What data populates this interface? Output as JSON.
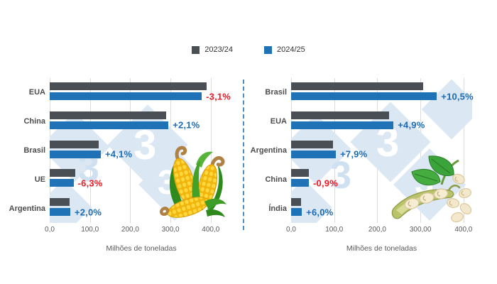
{
  "branding": {
    "watermark_glyph": "3"
  },
  "legend": {
    "items": [
      {
        "label": "2023/24",
        "color": "#4a4f55"
      },
      {
        "label": "2024/25",
        "color": "#1f72b5"
      }
    ]
  },
  "divider": {
    "style": "dashed-vertical",
    "color": "#4b8ec7"
  },
  "illustrations": {
    "left": "corn-cobs",
    "right": "soybean-pod-with-beans"
  },
  "colors": {
    "bar_2023_24": "#4a4f55",
    "bar_2024_25": "#1f72b5",
    "positive_change_text": "#1b6bb5",
    "negative_change_text": "#ee1b24",
    "gridline": "#dcdcdc",
    "watermark_tile": "#dbe7f3"
  },
  "chart_data": [
    {
      "id": "corn-production",
      "type": "bar",
      "orientation": "horizontal",
      "commodity_icon": "corn-icon",
      "categories": [
        "EUA",
        "China",
        "Brasil",
        "UE",
        "Argentina"
      ],
      "series": [
        {
          "name": "2023/24",
          "color": "#4a4f55",
          "values": [
            389.7,
            288.8,
            122.0,
            63.3,
            50.0
          ]
        },
        {
          "name": "2024/25",
          "color": "#1f72b5",
          "values": [
            377.6,
            294.9,
            127.0,
            59.3,
            51.0
          ]
        }
      ],
      "change_labels": [
        {
          "text": "-3,1%",
          "color": "#ee1b24"
        },
        {
          "text": "+2,1%",
          "color": "#1b6bb5"
        },
        {
          "text": "+4,1%",
          "color": "#1b6bb5"
        },
        {
          "text": "-6,3%",
          "color": "#ee1b24"
        },
        {
          "text": "+2,0%",
          "color": "#1b6bb5"
        }
      ],
      "x_ticks": [
        {
          "label": "0,0",
          "value": 0
        },
        {
          "label": "100,0",
          "value": 100
        },
        {
          "label": "200,0",
          "value": 200
        },
        {
          "label": "300,0",
          "value": 300
        },
        {
          "label": "400,0",
          "value": 400
        }
      ],
      "xlabel": "Milhões de toneladas",
      "xlim": [
        0,
        400
      ],
      "plot_scale_max": 455,
      "grid": true,
      "legend_position": "top-center"
    },
    {
      "id": "soybean-production",
      "type": "bar",
      "orientation": "horizontal",
      "commodity_icon": "soybean-icon",
      "categories": [
        "Brasil",
        "EUA",
        "Argentina",
        "China",
        "Índia"
      ],
      "series": [
        {
          "name": "2023/24",
          "color": "#4a4f55",
          "values": [
            306.0,
            226.6,
            96.4,
            41.6,
            23.6
          ]
        },
        {
          "name": "2024/25",
          "color": "#1f72b5",
          "values": [
            338.0,
            237.6,
            104.0,
            41.2,
            25.0
          ]
        }
      ],
      "change_labels": [
        {
          "text": "+10,5%",
          "color": "#1b6bb5"
        },
        {
          "text": "+4,9%",
          "color": "#1b6bb5"
        },
        {
          "text": "+7,9%",
          "color": "#1b6bb5"
        },
        {
          "text": "-0,9%",
          "color": "#ee1b24"
        },
        {
          "text": "+6,0%",
          "color": "#1b6bb5"
        }
      ],
      "x_ticks": [
        {
          "label": "0,0",
          "value": 0
        },
        {
          "label": "100,0",
          "value": 100
        },
        {
          "label": "200,0",
          "value": 200
        },
        {
          "label": "300,00",
          "value": 300
        },
        {
          "label": "400,0",
          "value": 400
        }
      ],
      "xlabel": "Milhões de toneladas",
      "xlim": [
        0,
        400
      ],
      "plot_scale_max": 420,
      "grid": true,
      "legend_position": "top-center"
    }
  ]
}
